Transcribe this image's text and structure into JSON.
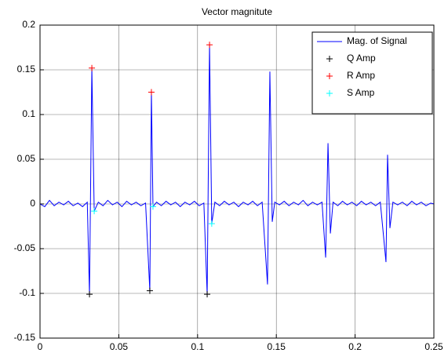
{
  "chart_data": {
    "type": "line",
    "title": "Vector magnitute",
    "xlim": [
      0,
      0.25
    ],
    "ylim": [
      -0.15,
      0.2
    ],
    "xticks": [
      0,
      0.05,
      0.1,
      0.15,
      0.2,
      0.25
    ],
    "yticks": [
      -0.15,
      -0.1,
      -0.05,
      0,
      0.05,
      0.1,
      0.15,
      0.2
    ],
    "grid": true,
    "legend": "upper right",
    "series": [
      {
        "name": "Mag. of Signal",
        "color": "#0000ff",
        "marker": "none",
        "x": [
          0,
          0.003,
          0.006,
          0.009,
          0.012,
          0.015,
          0.018,
          0.021,
          0.024,
          0.027,
          0.03,
          0.0314,
          0.0329,
          0.0344,
          0.037,
          0.04,
          0.043,
          0.046,
          0.049,
          0.052,
          0.055,
          0.058,
          0.061,
          0.064,
          0.067,
          0.0697,
          0.0707,
          0.0717,
          0.074,
          0.077,
          0.08,
          0.083,
          0.086,
          0.089,
          0.092,
          0.095,
          0.098,
          0.101,
          0.104,
          0.1061,
          0.1076,
          0.109,
          0.111,
          0.114,
          0.117,
          0.12,
          0.123,
          0.126,
          0.129,
          0.132,
          0.135,
          0.138,
          0.141,
          0.1444,
          0.1459,
          0.1474,
          0.149,
          0.152,
          0.155,
          0.158,
          0.161,
          0.164,
          0.167,
          0.17,
          0.173,
          0.176,
          0.179,
          0.1813,
          0.1828,
          0.1843,
          0.186,
          0.189,
          0.192,
          0.195,
          0.198,
          0.201,
          0.204,
          0.207,
          0.21,
          0.213,
          0.216,
          0.2196,
          0.2206,
          0.2221,
          0.224,
          0.227,
          0.23,
          0.233,
          0.236,
          0.239,
          0.242,
          0.245,
          0.248,
          0.25
        ],
        "values": [
          0,
          -0.003,
          0.004,
          -0.002,
          0.002,
          -0.001,
          0.003,
          -0.002,
          0.001,
          -0.003,
          0.002,
          -0.101,
          0.152,
          -0.008,
          0.002,
          -0.002,
          0.004,
          -0.001,
          0.002,
          -0.003,
          0.003,
          -0.001,
          0.002,
          -0.002,
          0.001,
          -0.097,
          0.125,
          -0.003,
          0.002,
          -0.002,
          0.003,
          -0.001,
          0.002,
          -0.003,
          0.002,
          -0.001,
          0.003,
          -0.002,
          0.001,
          -0.101,
          0.178,
          -0.022,
          0.002,
          -0.002,
          0.003,
          -0.001,
          0.002,
          -0.003,
          0.002,
          -0.001,
          0.003,
          -0.002,
          0.002,
          -0.09,
          0.148,
          -0.02,
          0.002,
          -0.001,
          0.003,
          -0.002,
          0.002,
          -0.001,
          0.004,
          -0.002,
          0.002,
          -0.001,
          0.002,
          -0.06,
          0.068,
          -0.033,
          0.002,
          -0.002,
          0.003,
          -0.001,
          0.002,
          -0.002,
          0.003,
          -0.001,
          0.002,
          -0.002,
          0.002,
          -0.065,
          0.055,
          -0.027,
          0.002,
          -0.001,
          0.002,
          -0.002,
          0.003,
          -0.001,
          0.002,
          -0.002,
          0.001,
          0
        ]
      },
      {
        "name": "Q Amp",
        "color": "#000000",
        "marker": "+",
        "x": [
          0.0314,
          0.0697,
          0.1061
        ],
        "values": [
          -0.101,
          -0.097,
          -0.101
        ]
      },
      {
        "name": "R Amp",
        "color": "#ff0000",
        "marker": "+",
        "x": [
          0.0329,
          0.0707,
          0.1076
        ],
        "values": [
          0.152,
          0.125,
          0.178
        ]
      },
      {
        "name": "S Amp",
        "color": "#00ffff",
        "marker": "+",
        "x": [
          0.0344,
          0.0717,
          0.109
        ],
        "values": [
          -0.008,
          -0.003,
          -0.022
        ]
      }
    ]
  }
}
